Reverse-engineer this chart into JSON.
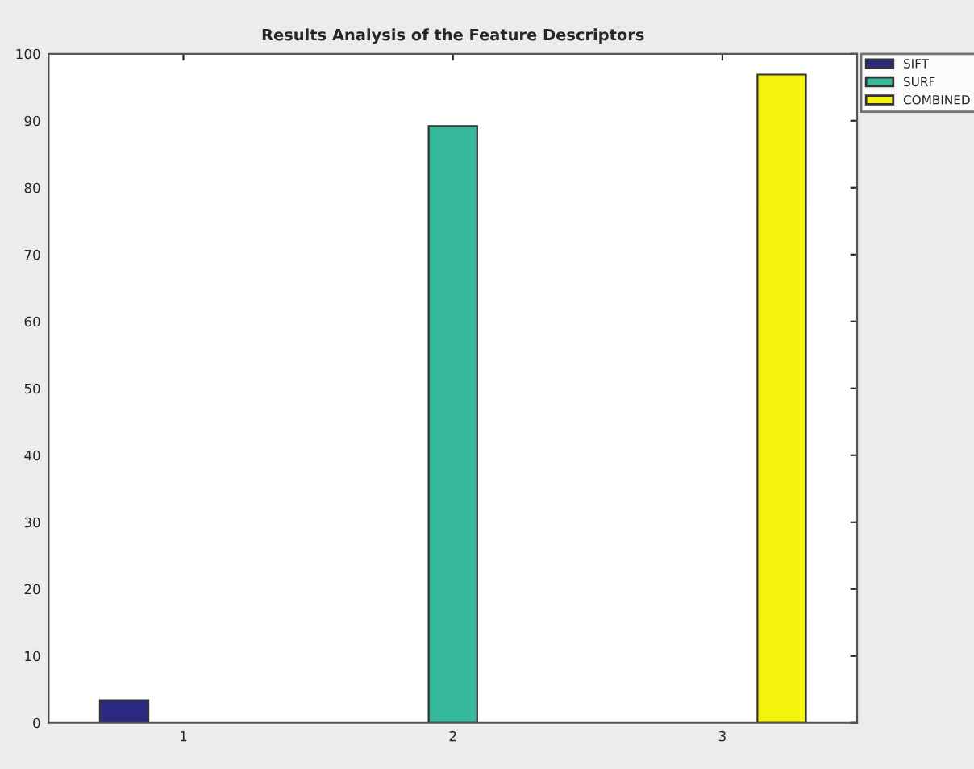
{
  "chart_data": {
    "type": "bar",
    "title": "Results Analysis of the Feature Descriptors",
    "categories": [
      "1",
      "2",
      "3"
    ],
    "series": [
      {
        "name": "SIFT",
        "color": "#2c2a80",
        "values": [
          3.4,
          null,
          null
        ]
      },
      {
        "name": "SURF",
        "color": "#36b99b",
        "values": [
          null,
          89.2,
          null
        ]
      },
      {
        "name": "COMBINED",
        "color": "#f4f40f",
        "values": [
          null,
          null,
          96.9
        ]
      }
    ],
    "ylim": [
      0,
      100
    ],
    "yticks": [
      0,
      10,
      20,
      30,
      40,
      50,
      60,
      70,
      80,
      90,
      100
    ],
    "grid": false,
    "legend": "top right"
  }
}
